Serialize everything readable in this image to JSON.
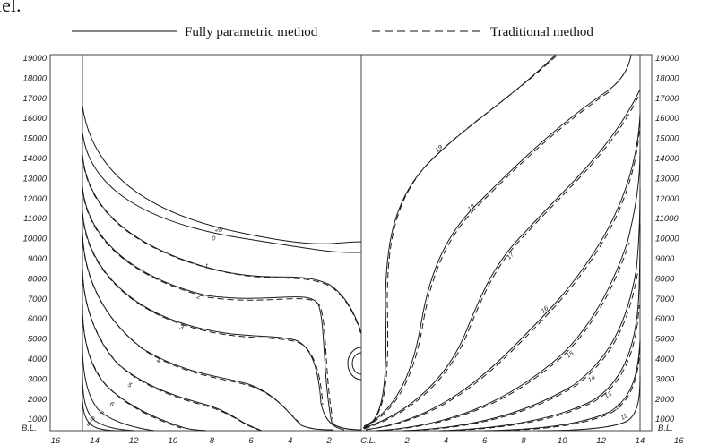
{
  "caption_fragment": "lel.",
  "legend": {
    "full_label": "Fully parametric method",
    "trad_label": "Traditional method"
  },
  "axes": {
    "y_ticks": [
      "1000",
      "2000",
      "3000",
      "4000",
      "5000",
      "6000",
      "7000",
      "8000",
      "9000",
      "10000",
      "11000",
      "12000",
      "13000",
      "14000",
      "15000",
      "16000",
      "17000",
      "18000",
      "19000"
    ],
    "x_ticks": [
      "16",
      "14",
      "12",
      "10",
      "8",
      "6",
      "4",
      "2",
      "C.L.",
      "2",
      "4",
      "6",
      "8",
      "10",
      "12",
      "14",
      "16"
    ],
    "baseline_label": "B.L."
  },
  "stations": {
    "aft": [
      "20",
      "0",
      "1",
      "2",
      "3",
      "4",
      "5",
      "6",
      "7",
      "8",
      "9"
    ],
    "fwd": [
      "19",
      "18",
      "17",
      "16",
      "15",
      "14",
      "13",
      "12",
      "11"
    ]
  },
  "colors": {
    "ink": "#1a1a1a"
  }
}
